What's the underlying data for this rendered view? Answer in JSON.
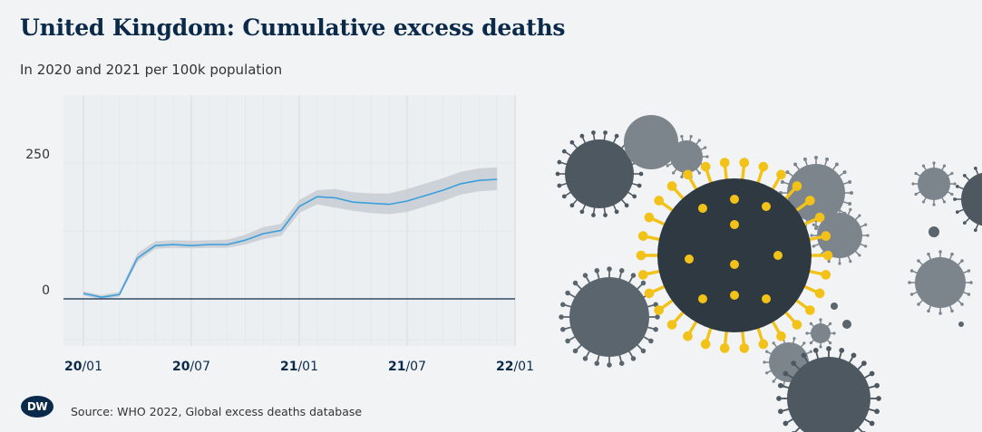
{
  "header": {
    "title": "United Kingdom: Cumulative excess deaths",
    "subtitle": "In 2020 and 2021 per 100k population"
  },
  "footer": {
    "logo_text": "DW",
    "source": "Source: WHO 2022, Global excess deaths database"
  },
  "colors": {
    "line": "#3a9fdd",
    "band": "#c9ced4",
    "zero_line": "#0b2a4a",
    "virus_dark": "#2f3942",
    "virus_gray": "#626c75",
    "spike_yellow": "#f2c218"
  },
  "chart_data": {
    "type": "line",
    "title": "United Kingdom: Cumulative excess deaths",
    "subtitle": "In 2020 and 2021 per 100k population",
    "yticks": [
      0,
      250
    ],
    "ylim": [
      -100,
      380
    ],
    "xticks": [
      {
        "bold": "20",
        "rest": "/01",
        "t": 0
      },
      {
        "bold": "20",
        "rest": "/07",
        "t": 6
      },
      {
        "bold": "21",
        "rest": "/01",
        "t": 12
      },
      {
        "bold": "21",
        "rest": "/07",
        "t": 18
      },
      {
        "bold": "22",
        "rest": "/01",
        "t": 24
      }
    ],
    "grid": true,
    "series": [
      {
        "x": [
          0,
          1,
          2,
          3,
          4,
          5,
          6,
          7,
          8,
          9,
          10,
          11,
          12,
          13,
          14,
          15,
          16,
          17,
          18,
          19,
          20,
          21,
          22,
          23
        ],
        "values": [
          10,
          3,
          8,
          75,
          98,
          100,
          98,
          100,
          100,
          108,
          120,
          126,
          170,
          188,
          186,
          178,
          176,
          174,
          180,
          190,
          200,
          212,
          218,
          220
        ],
        "lower": [
          6,
          -1,
          4,
          68,
          92,
          94,
          93,
          94,
          94,
          100,
          110,
          116,
          158,
          174,
          168,
          162,
          158,
          156,
          160,
          170,
          180,
          192,
          198,
          200
        ],
        "upper": [
          14,
          7,
          13,
          84,
          106,
          108,
          107,
          108,
          109,
          118,
          132,
          138,
          182,
          200,
          202,
          196,
          194,
          194,
          202,
          212,
          222,
          234,
          240,
          242
        ]
      }
    ]
  }
}
